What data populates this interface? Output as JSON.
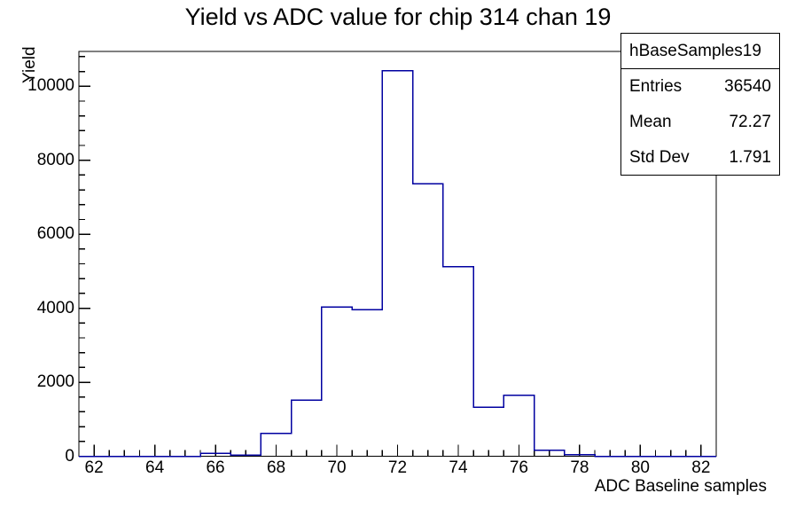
{
  "title": "Yield vs ADC value for chip 314 chan 19",
  "stats_box": {
    "name": "hBaseSamples19",
    "rows": [
      {
        "label": "Entries",
        "value": "36540"
      },
      {
        "label": "Mean",
        "value": "72.27"
      },
      {
        "label": "Std Dev",
        "value": "1.791"
      }
    ]
  },
  "chart_data": {
    "type": "bar",
    "subtype": "histogram-step-outline",
    "title": "Yield vs ADC value for chip 314 chan 19",
    "xlabel": "ADC Baseline samples",
    "ylabel": "Yield",
    "bin_width": 1,
    "categories": [
      62,
      63,
      64,
      65,
      66,
      67,
      68,
      69,
      70,
      71,
      72,
      73,
      74,
      75,
      76,
      77,
      78,
      79,
      80,
      81,
      82
    ],
    "values": [
      0,
      0,
      0,
      0,
      80,
      30,
      620,
      1520,
      4030,
      3960,
      10420,
      7370,
      5130,
      1330,
      1650,
      160,
      40,
      0,
      0,
      0,
      0
    ],
    "xlim": [
      61.5,
      82.5
    ],
    "ylim": [
      0,
      10941
    ],
    "x_major_ticks": [
      62,
      64,
      66,
      68,
      70,
      72,
      74,
      76,
      78,
      80,
      82
    ],
    "x_minor_step": 0.5,
    "y_major_ticks": [
      0,
      2000,
      4000,
      6000,
      8000,
      10000
    ],
    "y_major_tick_labels": [
      "0",
      "2000",
      "4000",
      "6000",
      "8000",
      "10000"
    ],
    "y_minor_step": 400,
    "grid": false,
    "legend": false,
    "line_color": "#0000a0",
    "frame_color": "#000000",
    "background_color": "#ffffff"
  }
}
